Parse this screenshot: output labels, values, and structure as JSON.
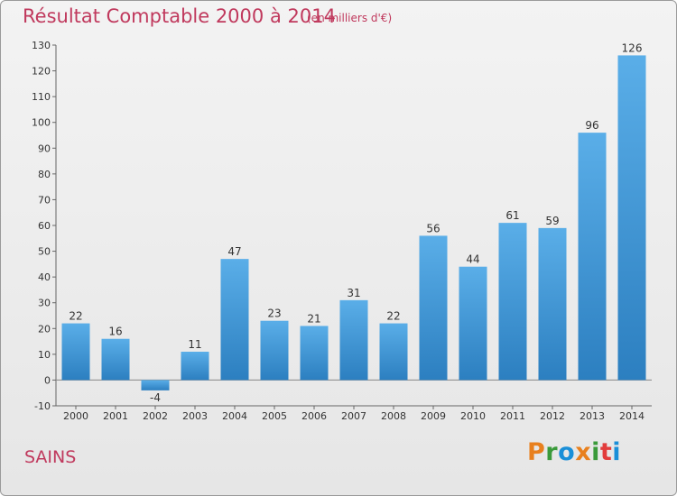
{
  "header": {
    "title": "Résultat Comptable 2000 à 2014",
    "unit": "(en milliers d'€)"
  },
  "footer": {
    "place": "SAINS",
    "brand": [
      "P",
      "r",
      "o",
      "x",
      "i",
      "t",
      "i"
    ]
  },
  "colors": {
    "accent": "#c0395d",
    "bar_top": "#5aaee8",
    "bar_bottom": "#2c7fc0",
    "brand": [
      "#e8801e",
      "#3a9a3a",
      "#1a8fd8",
      "#e8801e",
      "#3a9a3a",
      "#e23d3d",
      "#1a8fd8"
    ]
  },
  "chart_data": {
    "type": "bar",
    "title": "Résultat Comptable 2000 à 2014",
    "subtitle": "(en milliers d'€)",
    "categories": [
      "2000",
      "2001",
      "2002",
      "2003",
      "2004",
      "2005",
      "2006",
      "2007",
      "2008",
      "2009",
      "2010",
      "2011",
      "2012",
      "2013",
      "2014"
    ],
    "values": [
      22,
      16,
      -4,
      11,
      47,
      23,
      21,
      31,
      22,
      56,
      44,
      61,
      59,
      96,
      126
    ],
    "ylim": [
      -10,
      130
    ],
    "yticks": [
      -10,
      0,
      10,
      20,
      30,
      40,
      50,
      60,
      70,
      80,
      90,
      100,
      110,
      120,
      130
    ],
    "xlabel": "",
    "ylabel": "",
    "grid": false,
    "legend": "none"
  }
}
